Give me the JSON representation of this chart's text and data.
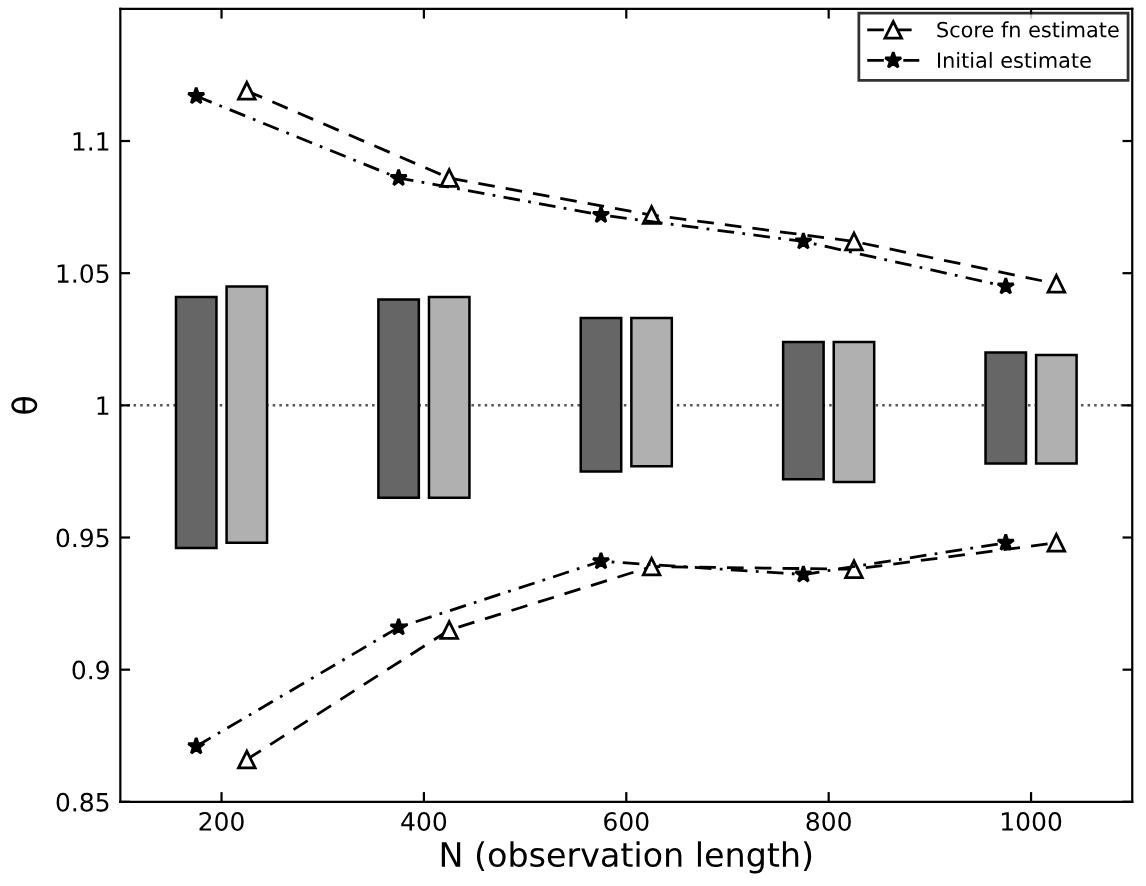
{
  "chart_data": {
    "type": "bar",
    "xlabel": "N (observation length)",
    "ylabel": "θ",
    "xlim": [
      100,
      1100
    ],
    "ylim": [
      0.85,
      1.15
    ],
    "xticks": [
      200,
      400,
      600,
      800,
      1000
    ],
    "yticks": [
      0.85,
      0.9,
      0.95,
      1,
      1.05,
      1.1
    ],
    "series": [
      {
        "color": "#666666",
        "x": [
          175,
          375,
          575,
          775,
          975
        ],
        "base": [
          0.946,
          0.965,
          0.975,
          0.972,
          0.978
        ],
        "values": [
          0.095,
          0.075,
          0.058,
          0.052,
          0.042
        ]
      },
      {
        "color": "#b0b0b0",
        "x": [
          225,
          425,
          625,
          825,
          1025
        ],
        "base": [
          0.948,
          0.965,
          0.977,
          0.971,
          0.978
        ],
        "values": [
          0.097,
          0.076,
          0.056,
          0.053,
          0.041
        ]
      },
      {
        "type": "line",
        "name": "Score fn estimate",
        "color": "#000000",
        "marker": "triangle",
        "line_style": "dashed",
        "x": [
          225,
          425,
          625,
          825,
          1025
        ],
        "values": [
          1.119,
          1.086,
          1.072,
          1.062,
          1.046
        ]
      },
      {
        "type": "line",
        "name": "Initial estimate",
        "color": "#000000",
        "marker": "star",
        "line_style": "dashdot",
        "x": [
          175,
          375,
          575,
          775,
          975
        ],
        "values": [
          1.117,
          1.086,
          1.072,
          1.062,
          1.045
        ]
      },
      {
        "type": "line",
        "color": "#000000",
        "marker": "triangle",
        "line_style": "dashed",
        "x": [
          225,
          425,
          625,
          825,
          1025
        ],
        "values": [
          0.866,
          0.915,
          0.939,
          0.938,
          0.948
        ]
      },
      {
        "type": "line",
        "color": "#000000",
        "marker": "star",
        "line_style": "dashdot",
        "x": [
          175,
          375,
          575,
          775,
          975
        ],
        "values": [
          0.871,
          0.916,
          0.941,
          0.936,
          0.948
        ]
      }
    ],
    "ref_lines": [
      {
        "axis": "y",
        "value": 1,
        "color": "#555555",
        "line_style": "dotted"
      }
    ],
    "legend": "top right",
    "grid": false
  }
}
